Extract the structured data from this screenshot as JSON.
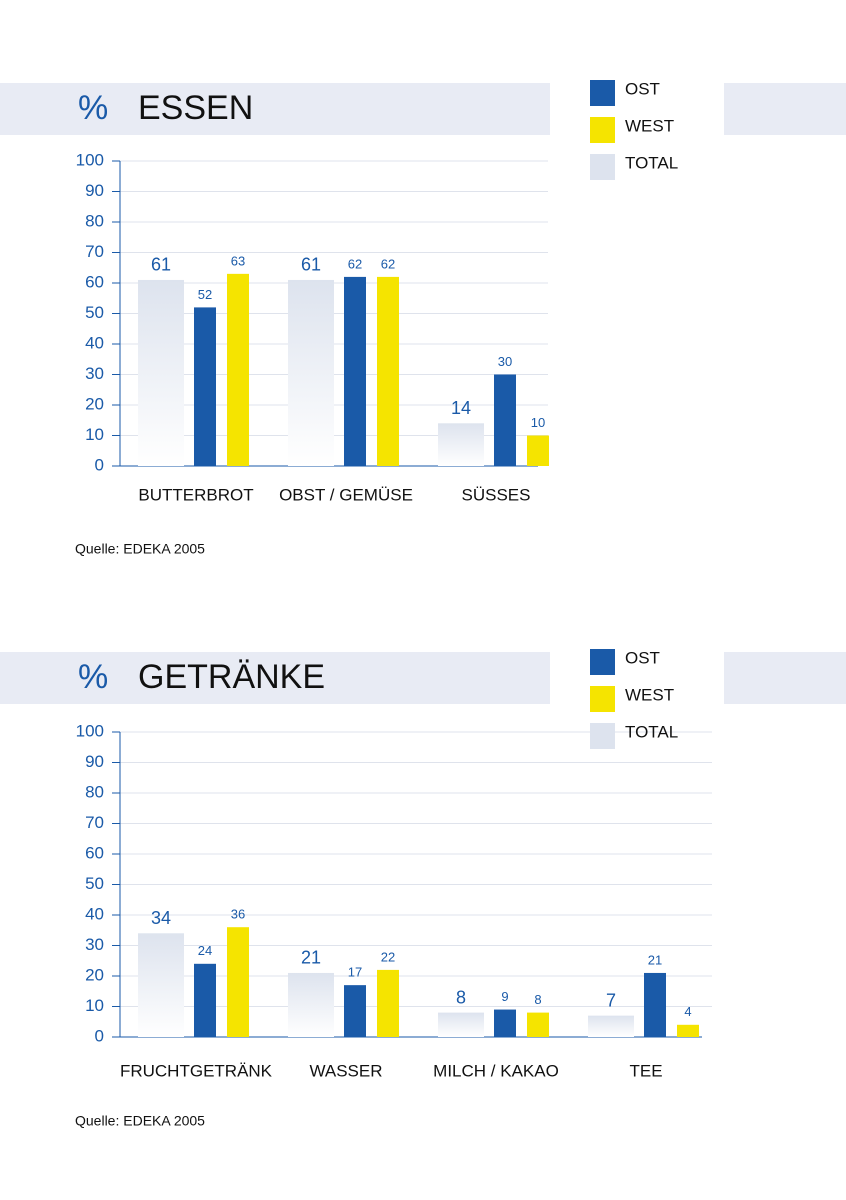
{
  "chart_data": [
    {
      "type": "bar",
      "unit": "%",
      "title": "ESSEN",
      "categories": [
        "BUTTERBROT",
        "OBST / GEMÜSE",
        "SÜSSES"
      ],
      "series": [
        {
          "name": "OST",
          "color": "#1a5aa8",
          "values": [
            52,
            62,
            30
          ]
        },
        {
          "name": "WEST",
          "color": "#f5e400",
          "values": [
            63,
            62,
            10
          ]
        },
        {
          "name": "TOTAL",
          "color": "#dde3ee",
          "values": [
            61,
            61,
            14
          ]
        }
      ],
      "ylim": [
        0,
        100
      ],
      "yticks": [
        0,
        10,
        20,
        30,
        40,
        50,
        60,
        70,
        80,
        90,
        100
      ],
      "grid": true,
      "source": "Quelle: EDEKA 2005"
    },
    {
      "type": "bar",
      "unit": "%",
      "title": "GETRÄNKE",
      "categories": [
        "FRUCHTGETRÄNK",
        "WASSER",
        "MILCH / KAKAO",
        "TEE"
      ],
      "series": [
        {
          "name": "OST",
          "color": "#1a5aa8",
          "values": [
            24,
            17,
            9,
            21
          ]
        },
        {
          "name": "WEST",
          "color": "#f5e400",
          "values": [
            36,
            22,
            8,
            4
          ]
        },
        {
          "name": "TOTAL",
          "color": "#dde3ee",
          "values": [
            34,
            21,
            8,
            7
          ]
        }
      ],
      "ylim": [
        0,
        100
      ],
      "yticks": [
        0,
        10,
        20,
        30,
        40,
        50,
        60,
        70,
        80,
        90,
        100
      ],
      "grid": true,
      "source": "Quelle: EDEKA 2005"
    }
  ]
}
